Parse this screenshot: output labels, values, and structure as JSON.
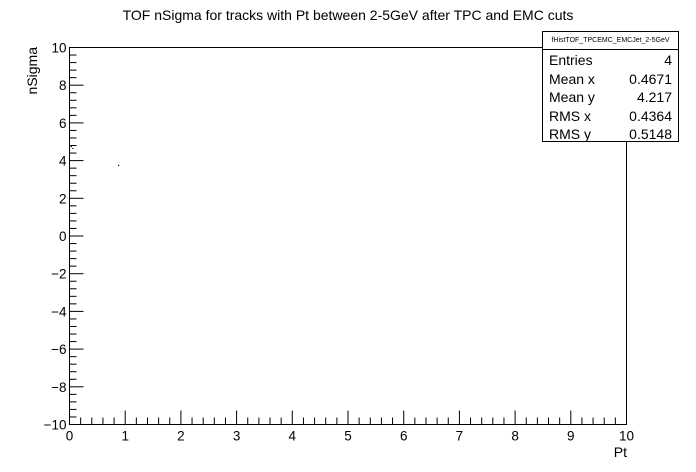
{
  "chart_data": {
    "type": "scatter",
    "title": "TOF nSigma for tracks with Pt between 2-5GeV after TPC and EMC cuts",
    "xlabel": "Pt",
    "ylabel": "nSigma",
    "xlim": [
      0,
      10
    ],
    "ylim": [
      -10,
      10
    ],
    "x_ticks": [
      0,
      1,
      2,
      3,
      4,
      5,
      6,
      7,
      8,
      9,
      10
    ],
    "x_tick_labels": [
      "0",
      "1",
      "2",
      "3",
      "4",
      "5",
      "6",
      "7",
      "8",
      "9",
      "10"
    ],
    "y_ticks": [
      -10,
      -8,
      -6,
      -4,
      -2,
      0,
      2,
      4,
      6,
      8,
      10
    ],
    "y_tick_labels": [
      "−10",
      "−8",
      "−6",
      "−4",
      "−2",
      "0",
      "2",
      "4",
      "6",
      "8",
      "10"
    ],
    "grid": false,
    "points": [
      {
        "x": 0.03,
        "y": 4.75
      },
      {
        "x": 0.06,
        "y": 4.65
      },
      {
        "x": 0.88,
        "y": 3.75
      }
    ],
    "stats": {
      "name": "fHistTOF_TPCEMC_EMCJet_2-5GeV",
      "rows": [
        {
          "label": "Entries",
          "value": "4"
        },
        {
          "label": "Mean x",
          "value": "0.4671"
        },
        {
          "label": "Mean y",
          "value": "4.217"
        },
        {
          "label": "RMS x",
          "value": "0.4364"
        },
        {
          "label": "RMS y",
          "value": "0.5148"
        }
      ]
    }
  }
}
